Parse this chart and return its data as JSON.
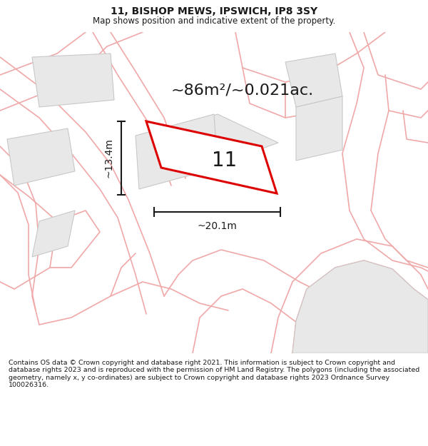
{
  "title_line1": "11, BISHOP MEWS, IPSWICH, IP8 3SY",
  "title_line2": "Map shows position and indicative extent of the property.",
  "area_text": "~86m²/~0.021ac.",
  "dim_width": "~20.1m",
  "dim_height": "~13.4m",
  "plot_number": "11",
  "footer_text": "Contains OS data © Crown copyright and database right 2021. This information is subject to Crown copyright and database rights 2023 and is reproduced with the permission of HM Land Registry. The polygons (including the associated geometry, namely x, y co-ordinates) are subject to Crown copyright and database rights 2023 Ordnance Survey 100026316.",
  "bg_color": "#ffffff",
  "map_bg": "#ffffff",
  "plot_fill": "#ffffff",
  "plot_edge": "#dd0000",
  "bldg_fill": "#e8e8e8",
  "bldg_edge": "#c8c8c8",
  "road_color": "#f0a8a8",
  "dim_color": "#1a1a1a",
  "title_color": "#1a1a1a",
  "footer_color": "#1a1a1a",
  "title_fontsize": 10,
  "subtitle_fontsize": 8.5,
  "area_fontsize": 16,
  "dim_fontsize": 10,
  "label_fontsize": 20,
  "footer_fontsize": 6.8
}
